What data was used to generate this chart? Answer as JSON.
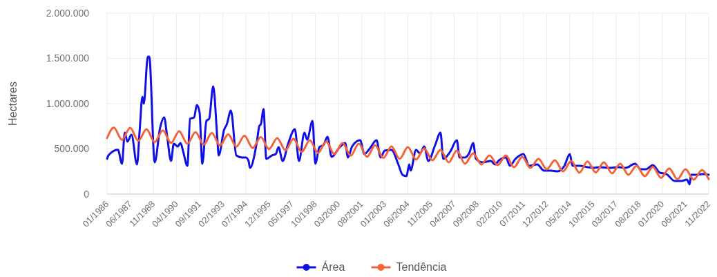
{
  "chart_data": {
    "type": "line",
    "ylabel": "Hectares",
    "xlim": [
      "1986-01",
      "2022-11"
    ],
    "xticks": [
      {
        "value": "1986-01",
        "label": "01/1986"
      },
      {
        "value": "1987-06",
        "label": "06/1987"
      },
      {
        "value": "1988-11",
        "label": "11/1988"
      },
      {
        "value": "1990-04",
        "label": "04/1990"
      },
      {
        "value": "1991-09",
        "label": "09/1991"
      },
      {
        "value": "1993-02",
        "label": "02/1993"
      },
      {
        "value": "1994-07",
        "label": "07/1994"
      },
      {
        "value": "1995-12",
        "label": "12/1995"
      },
      {
        "value": "1997-05",
        "label": "05/1997"
      },
      {
        "value": "1998-10",
        "label": "10/1998"
      },
      {
        "value": "2000-03",
        "label": "03/2000"
      },
      {
        "value": "2001-08",
        "label": "08/2001"
      },
      {
        "value": "2003-01",
        "label": "01/2003"
      },
      {
        "value": "2004-06",
        "label": "06/2004"
      },
      {
        "value": "2005-11",
        "label": "11/2005"
      },
      {
        "value": "2007-04",
        "label": "04/2007"
      },
      {
        "value": "2008-09",
        "label": "09/2008"
      },
      {
        "value": "2010-02",
        "label": "02/2010"
      },
      {
        "value": "2011-07",
        "label": "07/2011"
      },
      {
        "value": "2012-12",
        "label": "12/2012"
      },
      {
        "value": "2014-05",
        "label": "05/2014"
      },
      {
        "value": "2015-10",
        "label": "10/2015"
      },
      {
        "value": "2017-03",
        "label": "03/2017"
      },
      {
        "value": "2018-08",
        "label": "08/2018"
      },
      {
        "value": "2020-01",
        "label": "01/2020"
      },
      {
        "value": "2021-06",
        "label": "06/2021"
      },
      {
        "value": "2022-11",
        "label": "11/2022"
      }
    ],
    "ylim": [
      0,
      2000000
    ],
    "yticks": [
      0,
      {
        "value": 500000,
        "label": "500.000"
      },
      {
        "value": 1000000,
        "label": "1.000.000"
      },
      {
        "value": 1500000,
        "label": "1.500.000"
      },
      {
        "value": 2000000,
        "label": "2.000.000"
      }
    ],
    "grid": true,
    "legend": "bottom",
    "line_style": "solid",
    "series": [
      {
        "name": "Área",
        "color": "#1010e6",
        "x": [
          "1986-01",
          "1986-02",
          "1986-09",
          "1986-12",
          "1987-02",
          "1987-04",
          "1987-07",
          "1987-11",
          "1988-01",
          "1988-03",
          "1988-04",
          "1988-07",
          "1988-08",
          "1988-12",
          "1989-04",
          "1989-07",
          "1989-09",
          "1989-12",
          "1990-02",
          "1990-05",
          "1990-07",
          "1990-09",
          "1990-12",
          "1991-02",
          "1991-05",
          "1991-07",
          "1991-09",
          "1991-11",
          "1992-02",
          "1992-04",
          "1992-07",
          "1992-10",
          "1992-11",
          "1993-03",
          "1993-05",
          "1993-08",
          "1993-12",
          "1994-04",
          "1994-07",
          "1994-09",
          "1994-10",
          "1995-03",
          "1995-05",
          "1995-06",
          "1995-08",
          "1995-10",
          "1996-02",
          "1996-05",
          "1996-07",
          "1996-10",
          "1997-02",
          "1997-07",
          "1997-10",
          "1998-02",
          "1998-04",
          "1998-08",
          "1998-10",
          "1999-01",
          "1999-04",
          "1999-07",
          "1999-10",
          "2000-04",
          "2000-08",
          "2000-10",
          "2001-01",
          "2001-07",
          "2001-10",
          "2002-02",
          "2002-07",
          "2002-10",
          "2003-01",
          "2003-06",
          "2003-11",
          "2004-02",
          "2004-05",
          "2004-07",
          "2004-08",
          "2004-12",
          "2005-03",
          "2005-06",
          "2005-09",
          "2006-02",
          "2006-06",
          "2006-08",
          "2007-01",
          "2007-06",
          "2007-08",
          "2007-12",
          "2008-03",
          "2008-06",
          "2008-08",
          "2009-01",
          "2009-07",
          "2009-10",
          "2010-01",
          "2010-06",
          "2010-09",
          "2011-01",
          "2011-07",
          "2011-11",
          "2012-05",
          "2012-10",
          "2013-03",
          "2013-08",
          "2014-01",
          "2014-05",
          "2014-07",
          "2014-12",
          "2015-06",
          "2015-10",
          "2016-03",
          "2016-10",
          "2017-05",
          "2017-10",
          "2018-05",
          "2018-09",
          "2019-01",
          "2019-06",
          "2019-11",
          "2020-04",
          "2020-10",
          "2021-03",
          "2021-07",
          "2021-09",
          "2021-10",
          "2022-02",
          "2022-07",
          "2022-11"
        ],
        "values": [
          390000,
          427000,
          490000,
          335000,
          680000,
          580000,
          656000,
          328000,
          710000,
          1076000,
          1000000,
          1519000,
          1519000,
          351000,
          733000,
          847000,
          656000,
          366000,
          557000,
          527000,
          565000,
          466000,
          313000,
          832000,
          847000,
          985000,
          900000,
          336000,
          809000,
          832000,
          1191000,
          618000,
          427000,
          710000,
          771000,
          924000,
          427000,
          405000,
          405000,
          366000,
          290000,
          565000,
          756000,
          771000,
          939000,
          389000,
          427000,
          443000,
          519000,
          366000,
          557000,
          718000,
          366000,
          679000,
          603000,
          809000,
          336000,
          519000,
          542000,
          634000,
          412000,
          519000,
          565000,
          405000,
          527000,
          595000,
          443000,
          504000,
          595000,
          405000,
          481000,
          489000,
          328000,
          214000,
          198000,
          328000,
          260000,
          489000,
          450000,
          527000,
          366000,
          542000,
          679000,
          389000,
          466000,
          595000,
          405000,
          405000,
          450000,
          565000,
          389000,
          351000,
          366000,
          328000,
          374000,
          405000,
          313000,
          389000,
          443000,
          313000,
          328000,
          260000,
          260000,
          252000,
          313000,
          443000,
          313000,
          313000,
          298000,
          290000,
          298000,
          290000,
          298000,
          290000,
          336000,
          275000,
          275000,
          321000,
          237000,
          221000,
          145000,
          145000,
          160000,
          107000,
          214000,
          214000,
          221000,
          214000
        ]
      },
      {
        "name": "Tendência",
        "color": "#f4623a",
        "x": [
          "1986-01",
          "1986-06",
          "1986-12",
          "1987-06",
          "1987-12",
          "1988-06",
          "1988-12",
          "1989-06",
          "1989-12",
          "1990-06",
          "1990-12",
          "1991-06",
          "1991-12",
          "1992-06",
          "1992-12",
          "1993-06",
          "1993-12",
          "1994-06",
          "1994-12",
          "1995-06",
          "1995-12",
          "1996-06",
          "1996-12",
          "1997-06",
          "1997-12",
          "1998-06",
          "1998-12",
          "1999-06",
          "1999-12",
          "2000-06",
          "2000-12",
          "2001-06",
          "2001-12",
          "2002-06",
          "2002-12",
          "2003-06",
          "2003-12",
          "2004-06",
          "2004-12",
          "2005-06",
          "2005-12",
          "2006-06",
          "2006-12",
          "2007-06",
          "2007-12",
          "2008-06",
          "2008-12",
          "2009-06",
          "2009-12",
          "2010-06",
          "2010-12",
          "2011-06",
          "2011-12",
          "2012-06",
          "2012-12",
          "2013-06",
          "2013-12",
          "2014-06",
          "2014-12",
          "2015-06",
          "2015-12",
          "2016-06",
          "2016-12",
          "2017-06",
          "2017-12",
          "2018-06",
          "2018-12",
          "2019-06",
          "2019-12",
          "2020-06",
          "2020-12",
          "2021-06",
          "2021-12",
          "2022-06",
          "2022-11"
        ],
        "values": [
          620000,
          735000,
          600000,
          733000,
          590000,
          718000,
          575000,
          705000,
          565000,
          695000,
          557000,
          685000,
          548000,
          675000,
          538000,
          660000,
          525000,
          645000,
          510000,
          630000,
          498000,
          618000,
          485000,
          610000,
          466000,
          595000,
          455000,
          580000,
          443000,
          565000,
          425000,
          557000,
          412000,
          540000,
          400000,
          527000,
          389000,
          520000,
          382000,
          504000,
          374000,
          489000,
          351000,
          481000,
          336000,
          450000,
          328000,
          427000,
          320000,
          427000,
          298000,
          412000,
          290000,
          389000,
          275000,
          374000,
          252000,
          366000,
          237000,
          360000,
          240000,
          351000,
          230000,
          336000,
          214000,
          313000,
          198000,
          300000,
          180000,
          285000,
          165000,
          275000,
          160000,
          265000,
          165000
        ]
      }
    ]
  }
}
